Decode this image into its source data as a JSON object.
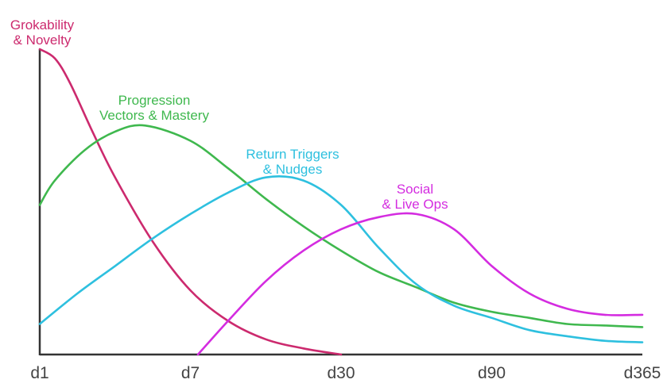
{
  "chart_data": {
    "type": "line",
    "title": "",
    "xlabel": "",
    "ylabel": "",
    "x_ticks": [
      "d1",
      "d7",
      "d30",
      "d90",
      "d365"
    ],
    "x_range": [
      0,
      4
    ],
    "y_range": [
      0,
      1
    ],
    "grid": false,
    "legend": "inline labels",
    "series": [
      {
        "name": "Grokability & Novelty",
        "label_lines": [
          "Grokability",
          "& Novelty"
        ],
        "color": "#cc2a6e",
        "x": [
          0.0,
          0.1,
          0.2,
          0.35,
          0.5,
          0.75,
          1.0,
          1.25,
          1.5,
          1.75,
          2.0
        ],
        "y": [
          1.0,
          0.97,
          0.89,
          0.73,
          0.58,
          0.37,
          0.21,
          0.11,
          0.05,
          0.02,
          0.0
        ]
      },
      {
        "name": "Progression Vectors & Mastery",
        "label_lines": [
          "Progression",
          "Vectors & Mastery"
        ],
        "color": "#3fb84e",
        "x": [
          0.0,
          0.1,
          0.3,
          0.5,
          0.7,
          1.0,
          1.25,
          1.5,
          1.75,
          2.0,
          2.25,
          2.5,
          2.75,
          3.0,
          3.25,
          3.5,
          3.75,
          4.0
        ],
        "y": [
          0.49,
          0.57,
          0.67,
          0.73,
          0.75,
          0.7,
          0.61,
          0.51,
          0.42,
          0.34,
          0.27,
          0.22,
          0.17,
          0.14,
          0.12,
          0.1,
          0.095,
          0.09
        ]
      },
      {
        "name": "Return Triggers & Nudges",
        "label_lines": [
          "Return Triggers",
          "& Nudges"
        ],
        "color": "#2ec0df",
        "x": [
          0.0,
          0.25,
          0.5,
          0.75,
          1.0,
          1.25,
          1.5,
          1.75,
          2.0,
          2.25,
          2.5,
          2.75,
          3.0,
          3.25,
          3.5,
          3.75,
          4.0
        ],
        "y": [
          0.1,
          0.2,
          0.29,
          0.38,
          0.46,
          0.53,
          0.58,
          0.57,
          0.49,
          0.35,
          0.23,
          0.16,
          0.12,
          0.08,
          0.06,
          0.045,
          0.04
        ]
      },
      {
        "name": "Social & Live Ops",
        "label_lines": [
          "Social",
          "& Live Ops"
        ],
        "color": "#d42ce0",
        "x": [
          1.05,
          1.25,
          1.5,
          1.75,
          2.0,
          2.25,
          2.5,
          2.75,
          3.0,
          3.25,
          3.5,
          3.75,
          4.0
        ],
        "y": [
          0.0,
          0.11,
          0.24,
          0.34,
          0.41,
          0.45,
          0.46,
          0.41,
          0.29,
          0.2,
          0.15,
          0.13,
          0.13
        ]
      }
    ]
  }
}
